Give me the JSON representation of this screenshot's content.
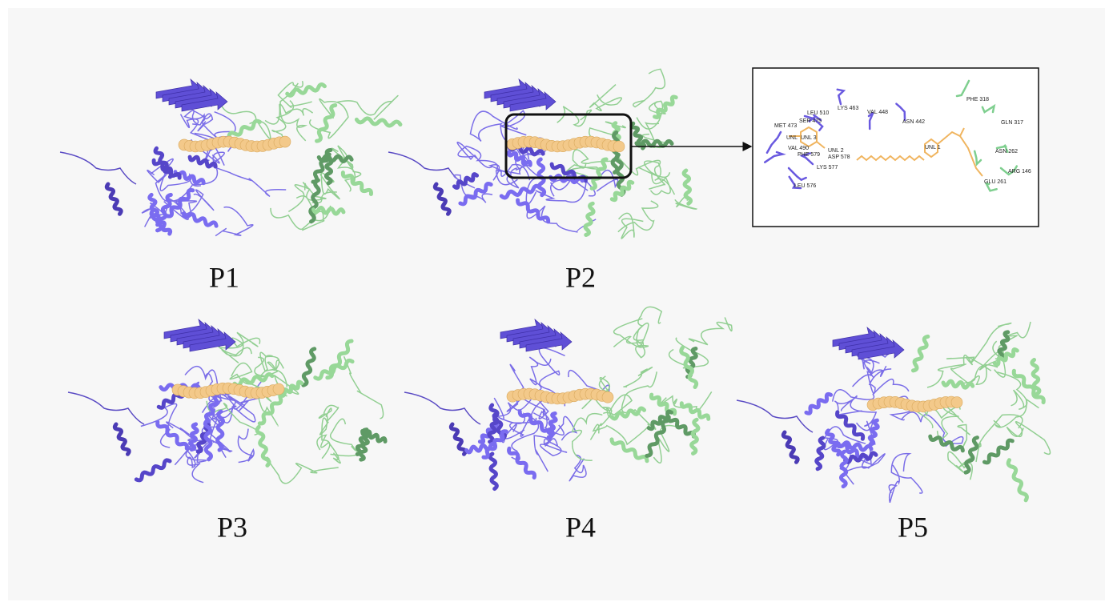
{
  "panels": [
    "P1",
    "P2",
    "P3",
    "P4",
    "P5"
  ],
  "inset": {
    "residues": [
      "LEU 510",
      "SER 475",
      "LYS 463",
      "VAL 448",
      "ASN 442",
      "MET 473",
      "UNL",
      "UNL 3",
      "VAL 490",
      "PHE 579",
      "UNL 2",
      "ASP 578",
      "LYS 577",
      "LEU 576",
      "UNL 1",
      "PHE 318",
      "GLN 317",
      "ASN 262",
      "ARG 146",
      "GLU 261"
    ]
  }
}
